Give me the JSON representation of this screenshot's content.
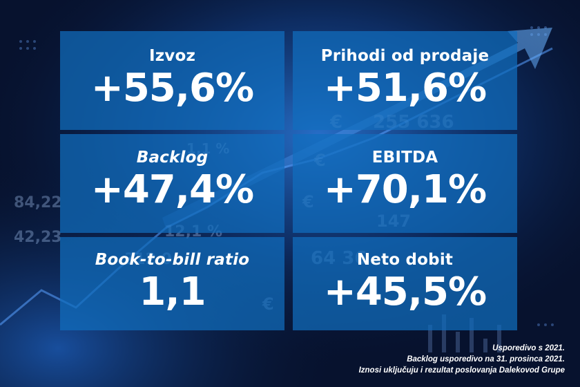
{
  "metrics": [
    {
      "label": "Izvoz",
      "value": "+55,6%"
    },
    {
      "label": "Prihodi od prodaje",
      "value": "+51,6%"
    },
    {
      "label": "Backlog",
      "value": "+47,4%"
    },
    {
      "label": "EBITDA",
      "value": "+70,1%"
    },
    {
      "label": "Book-to-bill ratio",
      "value": "1,1"
    },
    {
      "label": "Neto dobit",
      "value": "+45,5%"
    }
  ],
  "footnotes": [
    "Usporedivo s 2021.",
    "Backlog usporedivo na 31. prosinca 2021.",
    "Iznosi uključuju i rezultat poslovanja Dalekovod Grupe"
  ],
  "background": {
    "numbers": [
      "€",
      "255 636",
      "1,1 %",
      "12,1 %",
      "312 0",
      "64 36",
      "147",
      "84,22",
      "42,23",
      "€",
      "€",
      "€"
    ],
    "colors": {
      "dark": "#07122e",
      "glow": "#1d6fd0",
      "card": "#106ebe"
    }
  }
}
